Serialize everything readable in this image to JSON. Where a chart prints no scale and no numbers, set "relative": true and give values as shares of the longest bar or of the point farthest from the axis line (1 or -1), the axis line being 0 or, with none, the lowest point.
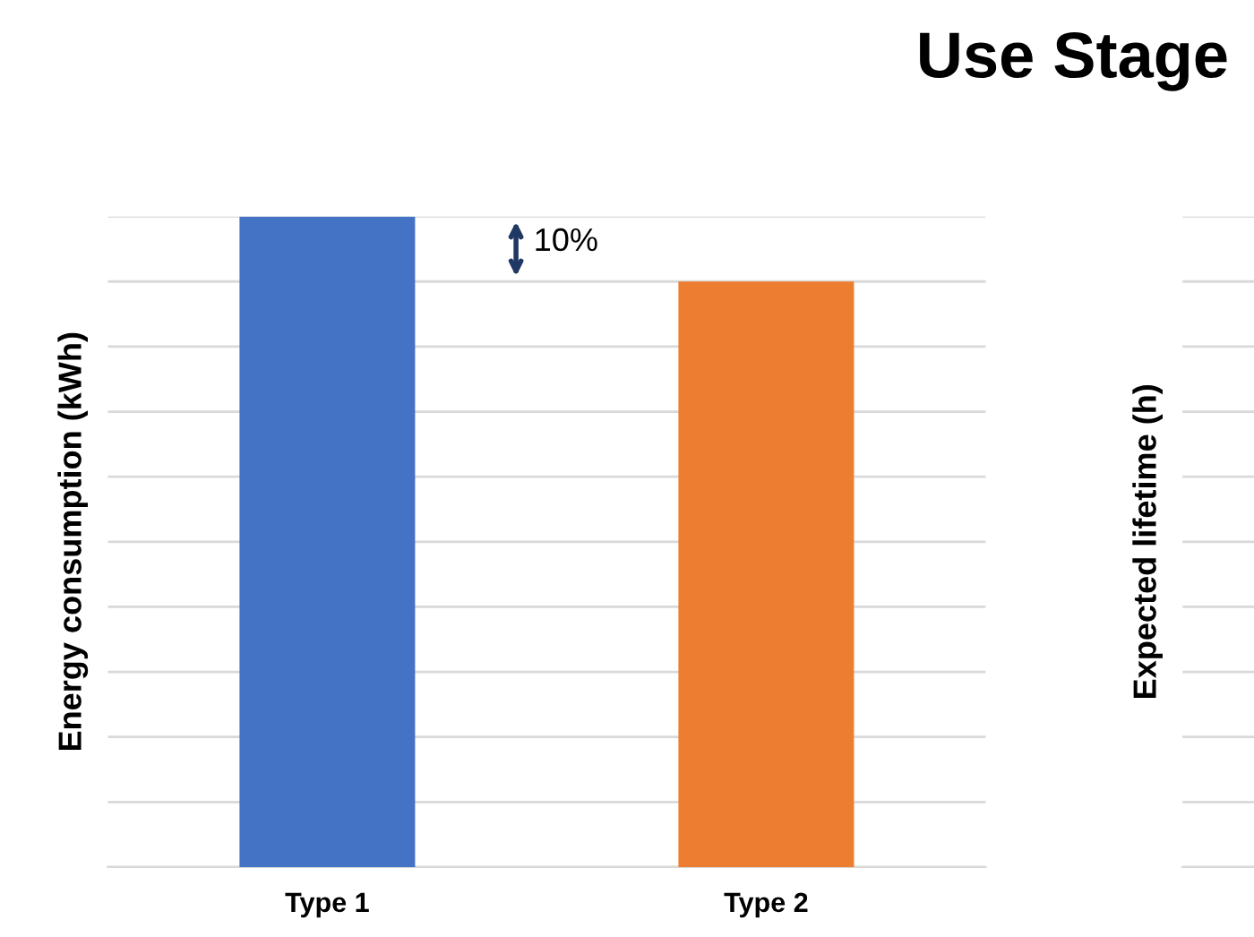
{
  "chart_data": [
    {
      "type": "bar",
      "title": "Use Stage",
      "ylabel": "Energy consumption (kWh)",
      "relative": true,
      "categories": [
        "Type 1",
        "Type 2"
      ],
      "values": [
        1,
        0.9
      ],
      "colors": [
        "#4472c4",
        "#ed7d31"
      ],
      "grid": "y",
      "annotations": [
        "10%"
      ]
    },
    {
      "type": "other",
      "ylabel": "Expected lifetime (h)"
    }
  ]
}
